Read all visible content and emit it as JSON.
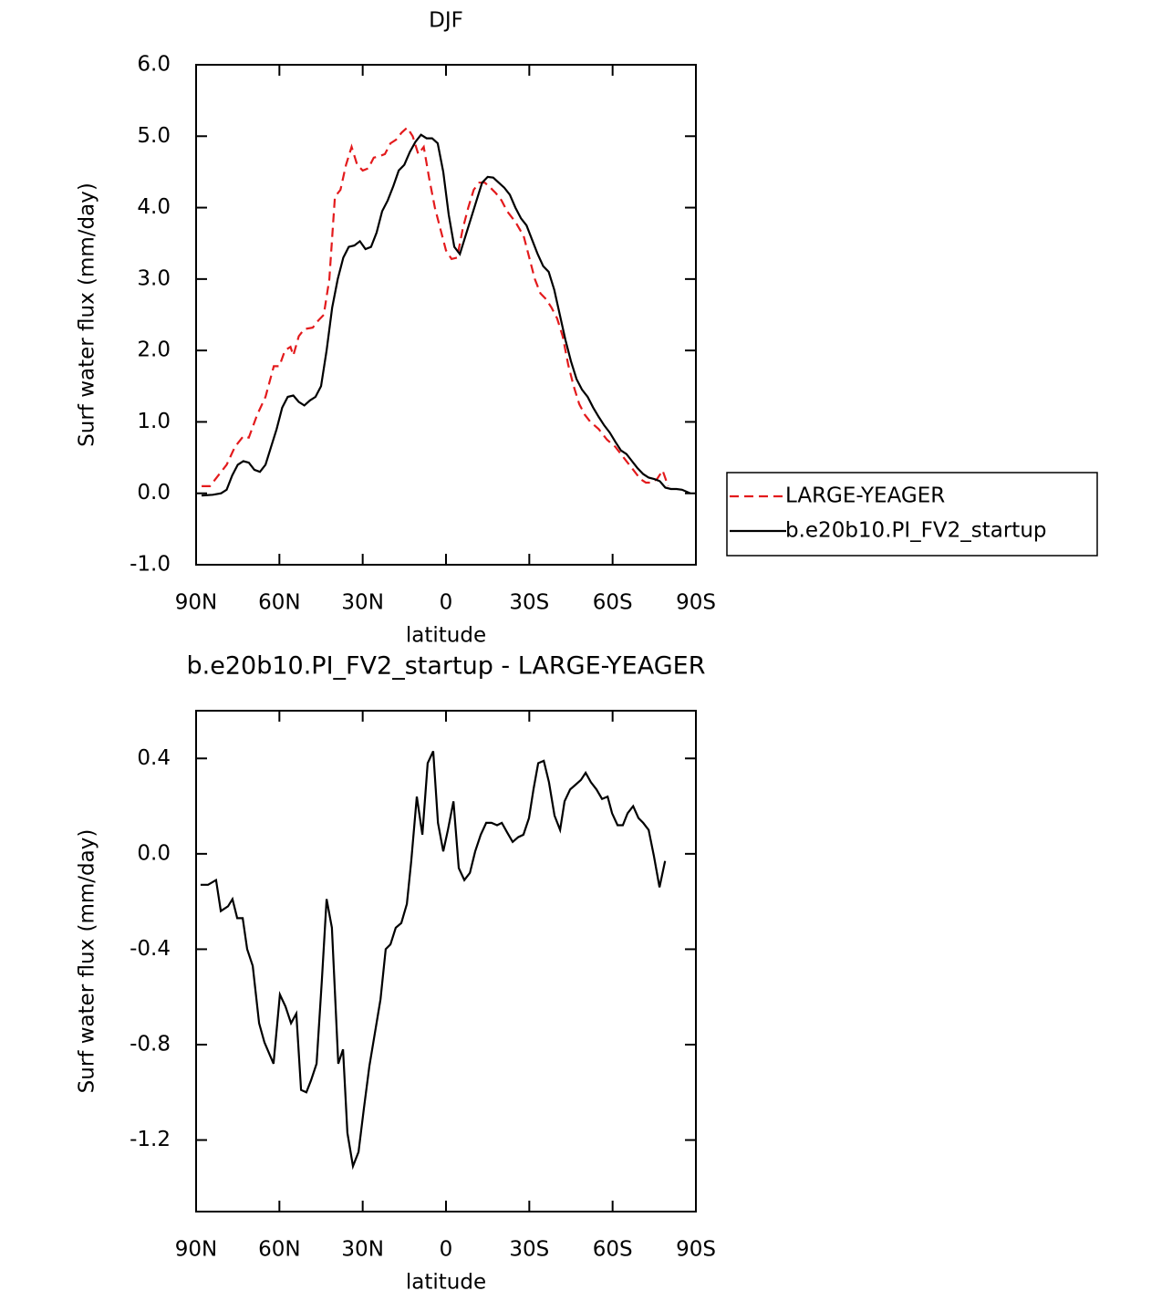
{
  "chart_data": [
    {
      "type": "line",
      "title": "DJF",
      "x_label": "latitude",
      "y_label": "Surf water flux (mm/day)",
      "xlim": [
        90,
        -90
      ],
      "xticks": [
        {
          "value": 90,
          "label": "90N"
        },
        {
          "value": 60,
          "label": "60N"
        },
        {
          "value": 30,
          "label": "30N"
        },
        0,
        {
          "value": -30,
          "label": "30S"
        },
        {
          "value": -60,
          "label": "60S"
        },
        {
          "value": -90,
          "label": "90S"
        }
      ],
      "ylim": [
        -1,
        6
      ],
      "yticks": [
        {
          "value": -1,
          "label": "-1.0"
        },
        {
          "value": 0,
          "label": "0.0"
        },
        {
          "value": 1,
          "label": "1.0"
        },
        {
          "value": 2,
          "label": "2.0"
        },
        {
          "value": 3,
          "label": "3.0"
        },
        {
          "value": 4,
          "label": "4.0"
        },
        {
          "value": 5,
          "label": "5.0"
        },
        {
          "value": 6,
          "label": "6.0"
        }
      ],
      "legend": "right",
      "series": [
        {
          "name": "LARGE-YEAGER",
          "color": "#e31a1c",
          "dashed": true,
          "x": [
            88,
            85,
            82,
            79,
            76,
            73,
            71,
            68,
            65,
            62,
            60,
            58,
            56,
            55,
            53,
            51,
            48,
            46,
            44,
            42,
            40,
            38,
            36,
            34,
            32,
            30,
            28,
            26,
            24,
            22,
            20,
            18,
            16,
            14,
            12,
            10,
            8,
            6,
            4,
            2,
            0,
            -2,
            -4,
            -6,
            -8,
            -10,
            -12,
            -14,
            -16,
            -18,
            -20,
            -22,
            -25,
            -28,
            -30,
            -32,
            -34,
            -36,
            -38,
            -40,
            -42,
            -44,
            -46,
            -48,
            -50,
            -52,
            -55,
            -58,
            -61,
            -64,
            -67,
            -70,
            -72,
            -74,
            -76,
            -78,
            -80
          ],
          "values": [
            0.1,
            0.1,
            0.25,
            0.4,
            0.65,
            0.8,
            0.78,
            1.1,
            1.35,
            1.78,
            1.78,
            2.0,
            2.05,
            1.93,
            2.2,
            2.3,
            2.32,
            2.42,
            2.5,
            3.0,
            4.15,
            4.25,
            4.6,
            4.85,
            4.6,
            4.52,
            4.55,
            4.7,
            4.72,
            4.75,
            4.9,
            4.95,
            5.05,
            5.12,
            5.0,
            4.75,
            4.85,
            4.4,
            4.0,
            3.7,
            3.4,
            3.28,
            3.3,
            3.7,
            4.0,
            4.25,
            4.35,
            4.35,
            4.28,
            4.2,
            4.1,
            3.95,
            3.8,
            3.6,
            3.3,
            3.0,
            2.8,
            2.72,
            2.6,
            2.45,
            2.2,
            1.8,
            1.5,
            1.25,
            1.1,
            1.0,
            0.9,
            0.75,
            0.65,
            0.5,
            0.35,
            0.2,
            0.15,
            0.15,
            0.2,
            0.32,
            0.1
          ]
        },
        {
          "name": "b.e20b10.PI_FV2_startup",
          "color": "#000000",
          "dashed": false,
          "x": [
            88,
            84,
            81,
            79,
            77,
            75,
            73,
            71,
            69,
            67,
            65,
            63,
            61,
            59,
            57,
            55,
            53,
            51,
            49,
            47,
            45,
            43,
            41,
            39,
            37,
            35,
            33,
            31,
            29,
            27,
            25,
            23,
            21,
            19,
            17,
            15,
            13,
            11,
            9,
            7,
            5,
            3,
            1,
            -1,
            -3,
            -5,
            -7,
            -9,
            -11,
            -13,
            -15,
            -17,
            -19,
            -21,
            -23,
            -25,
            -27,
            -29,
            -31,
            -33,
            -35,
            -37,
            -39,
            -41,
            -43,
            -45,
            -47,
            -49,
            -51,
            -53,
            -55,
            -57,
            -59,
            -61,
            -63,
            -65,
            -67,
            -69,
            -71,
            -73,
            -75,
            -77,
            -79,
            -81,
            -83,
            -85,
            -88
          ],
          "values": [
            -0.03,
            -0.02,
            0.0,
            0.05,
            0.25,
            0.4,
            0.45,
            0.43,
            0.33,
            0.3,
            0.4,
            0.65,
            0.9,
            1.2,
            1.35,
            1.37,
            1.28,
            1.23,
            1.3,
            1.35,
            1.5,
            2.0,
            2.6,
            3.0,
            3.3,
            3.45,
            3.47,
            3.53,
            3.42,
            3.45,
            3.65,
            3.95,
            4.1,
            4.3,
            4.52,
            4.6,
            4.78,
            4.92,
            5.02,
            4.97,
            4.97,
            4.9,
            4.5,
            3.9,
            3.45,
            3.35,
            3.6,
            3.85,
            4.1,
            4.35,
            4.43,
            4.42,
            4.35,
            4.28,
            4.18,
            4.0,
            3.85,
            3.75,
            3.55,
            3.35,
            3.18,
            3.1,
            2.85,
            2.5,
            2.15,
            1.85,
            1.6,
            1.45,
            1.35,
            1.2,
            1.07,
            0.95,
            0.85,
            0.72,
            0.6,
            0.55,
            0.45,
            0.35,
            0.27,
            0.22,
            0.2,
            0.17,
            0.08,
            0.06,
            0.06,
            0.05,
            0.0
          ]
        }
      ]
    },
    {
      "type": "line",
      "title": "b.e20b10.PI_FV2_startup - LARGE-YEAGER",
      "x_label": "latitude",
      "y_label": "Surf water flux (mm/day)",
      "xlim": [
        90,
        -90
      ],
      "xticks": [
        {
          "value": 90,
          "label": "90N"
        },
        {
          "value": 60,
          "label": "60N"
        },
        {
          "value": 30,
          "label": "30N"
        },
        0,
        {
          "value": -30,
          "label": "30S"
        },
        {
          "value": -60,
          "label": "60S"
        },
        {
          "value": -90,
          "label": "90S"
        }
      ],
      "ylim": [
        -1.5,
        0.6
      ],
      "yticks": [
        -1.2,
        -0.8,
        -0.4,
        {
          "value": 0,
          "label": "0.0"
        },
        0.4
      ],
      "series": [
        {
          "color": "#000000",
          "dashed": false,
          "x": [
            88.4,
            85.7,
            82.8,
            81.1,
            78.5,
            76.9,
            75.2,
            73.2,
            71.6,
            69.6,
            67.3,
            65.4,
            62.1,
            59.8,
            57.8,
            55.8,
            53.9,
            52.2,
            50.3,
            48.6,
            46.6,
            44.7,
            43.0,
            41.1,
            38.8,
            37.1,
            35.5,
            33.5,
            31.5,
            29.6,
            27.6,
            25.6,
            23.6,
            21.7,
            20.0,
            18.1,
            16.1,
            14.1,
            12.5,
            10.5,
            8.5,
            6.6,
            4.6,
            2.9,
            1.0,
            -0.7,
            -2.7,
            -4.6,
            -6.6,
            -8.6,
            -10.5,
            -12.5,
            -14.5,
            -16.4,
            -18.4,
            -20.1,
            -22.0,
            -24.0,
            -26.0,
            -27.9,
            -29.9,
            -31.5,
            -33.2,
            -35.2,
            -37.1,
            -39.1,
            -41.1,
            -42.7,
            -44.7,
            -46.7,
            -48.6,
            -50.3,
            -52.2,
            -54.2,
            -56.2,
            -58.2,
            -59.8,
            -61.8,
            -63.7,
            -65.4,
            -67.4,
            -69.3,
            -71.0,
            -73.0,
            -74.9,
            -76.9,
            -78.9
          ],
          "values": [
            -0.13,
            -0.13,
            -0.11,
            -0.24,
            -0.22,
            -0.19,
            -0.27,
            -0.27,
            -0.4,
            -0.47,
            -0.71,
            -0.79,
            -0.88,
            -0.59,
            -0.64,
            -0.71,
            -0.67,
            -0.99,
            -1.0,
            -0.95,
            -0.88,
            -0.53,
            -0.19,
            -0.31,
            -0.88,
            -0.82,
            -1.17,
            -1.31,
            -1.25,
            -1.07,
            -0.89,
            -0.75,
            -0.61,
            -0.4,
            -0.38,
            -0.31,
            -0.29,
            -0.21,
            -0.03,
            0.24,
            0.08,
            0.38,
            0.43,
            0.13,
            0.01,
            0.1,
            0.22,
            -0.06,
            -0.11,
            -0.08,
            0.01,
            0.08,
            0.13,
            0.13,
            0.12,
            0.13,
            0.09,
            0.05,
            0.07,
            0.08,
            0.15,
            0.27,
            0.38,
            0.39,
            0.3,
            0.16,
            0.1,
            0.22,
            0.27,
            0.29,
            0.31,
            0.34,
            0.3,
            0.27,
            0.23,
            0.24,
            0.17,
            0.12,
            0.12,
            0.17,
            0.2,
            0.15,
            0.13,
            0.1,
            -0.01,
            -0.14,
            -0.03
          ]
        }
      ]
    }
  ]
}
